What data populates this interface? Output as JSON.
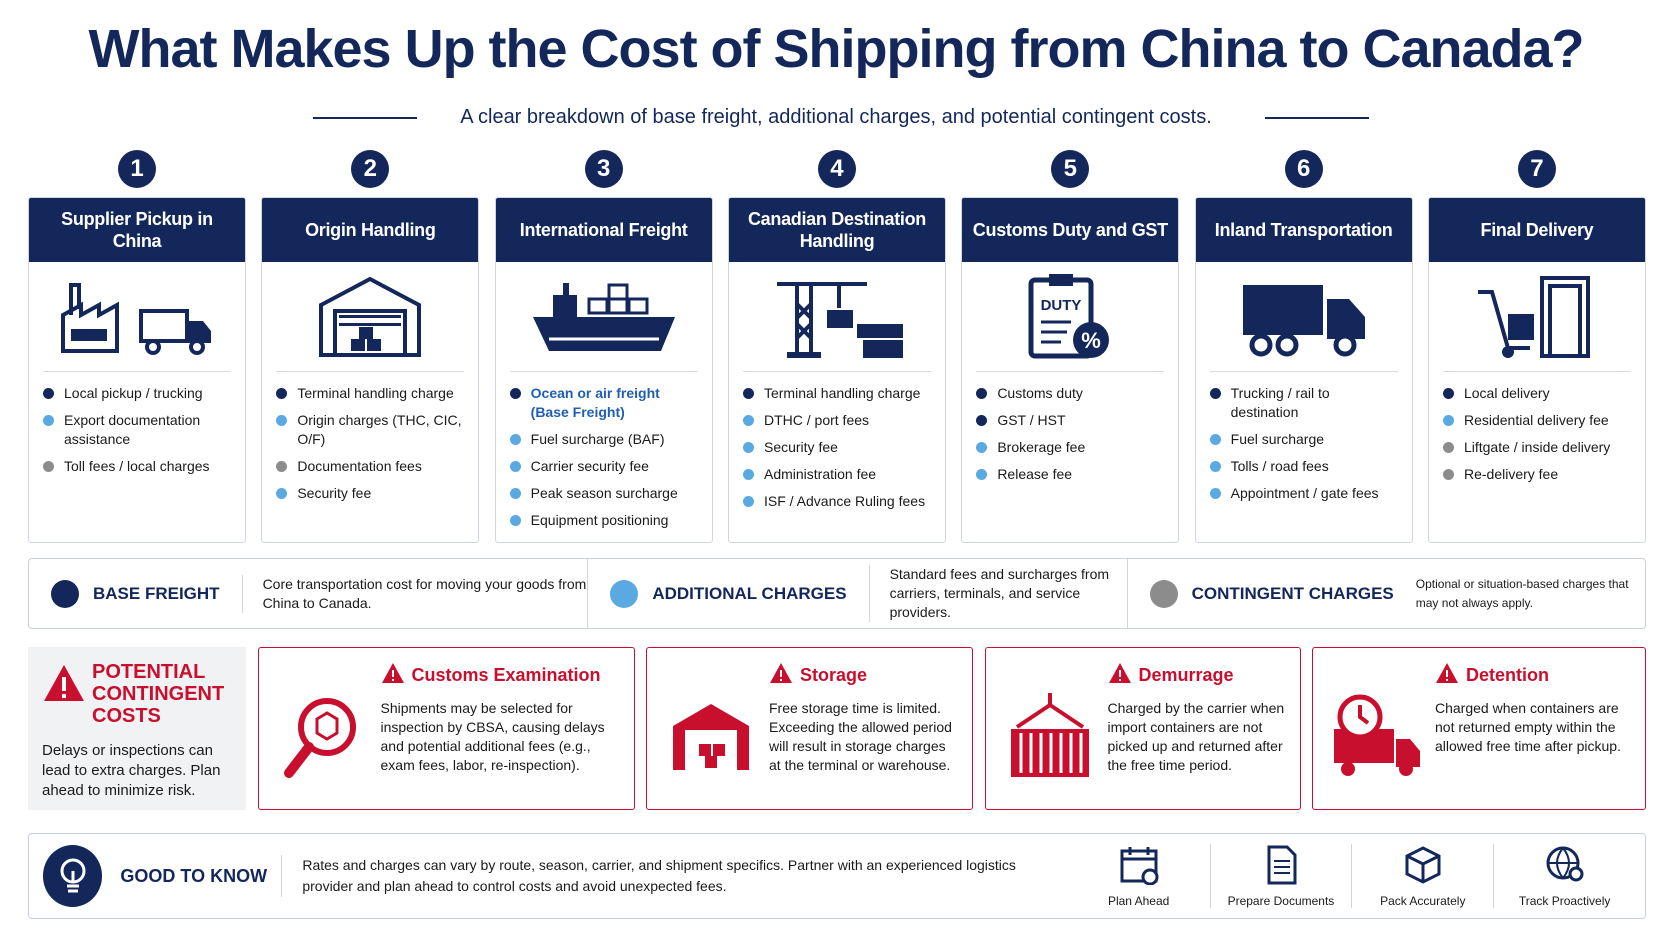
{
  "header": {
    "title": "What Makes Up the Cost of Shipping from China to Canada?",
    "subtitle": "A clear breakdown of base freight, additional charges, and potential contingent costs."
  },
  "steps": [
    {
      "number": "1",
      "title": "Supplier Pickup in China",
      "items": [
        {
          "text": "Local pickup / trucking",
          "color": "#13275a"
        },
        {
          "text": "Export documentation assistance",
          "color": "#5aa9e0"
        },
        {
          "text": "Toll fees / local charges",
          "color": "#8c8c8c"
        }
      ]
    },
    {
      "number": "2",
      "title": "Origin Handling",
      "items": [
        {
          "text": "Terminal handling charge",
          "color": "#13275a"
        },
        {
          "text": "Origin charges (THC, CIC, O/F)",
          "color": "#5aa9e0"
        },
        {
          "text": "Documentation fees",
          "color": "#8c8c8c"
        },
        {
          "text": "Security fee",
          "color": "#5aa9e0"
        }
      ]
    },
    {
      "number": "3",
      "title": "International Freight",
      "items": [
        {
          "text": "Ocean or air freight (Base Freight)",
          "color": "#13275a",
          "emphasis": true
        },
        {
          "text": "Fuel surcharge (BAF)",
          "color": "#5aa9e0"
        },
        {
          "text": "Carrier security fee",
          "color": "#5aa9e0"
        },
        {
          "text": "Peak season surcharge",
          "color": "#5aa9e0"
        },
        {
          "text": "Equipment positioning",
          "color": "#5aa9e0"
        }
      ]
    },
    {
      "number": "4",
      "title": "Canadian Destination Handling",
      "items": [
        {
          "text": "Terminal handling charge",
          "color": "#13275a"
        },
        {
          "text": "DTHC / port fees",
          "color": "#5aa9e0"
        },
        {
          "text": "Security fee",
          "color": "#5aa9e0"
        },
        {
          "text": "Administration fee",
          "color": "#5aa9e0"
        },
        {
          "text": "ISF / Advance Ruling fees",
          "color": "#5aa9e0"
        }
      ]
    },
    {
      "number": "5",
      "title": "Customs Duty and GST",
      "icon_text": "DUTY",
      "icon_badge": "%",
      "items": [
        {
          "text": "Customs duty",
          "color": "#13275a"
        },
        {
          "text": "GST / HST",
          "color": "#13275a"
        },
        {
          "text": "Brokerage fee",
          "color": "#5aa9e0"
        },
        {
          "text": "Release fee",
          "color": "#5aa9e0"
        }
      ]
    },
    {
      "number": "6",
      "title": "Inland Transportation",
      "items": [
        {
          "text": "Trucking / rail to destination",
          "color": "#13275a"
        },
        {
          "text": "Fuel surcharge",
          "color": "#5aa9e0"
        },
        {
          "text": "Tolls / road fees",
          "color": "#5aa9e0"
        },
        {
          "text": "Appointment / gate fees",
          "color": "#5aa9e0"
        }
      ]
    },
    {
      "number": "7",
      "title": "Final Delivery",
      "items": [
        {
          "text": "Local delivery",
          "color": "#13275a"
        },
        {
          "text": "Residential delivery fee",
          "color": "#5aa9e0"
        },
        {
          "text": "Liftgate / inside delivery",
          "color": "#8c8c8c"
        },
        {
          "text": "Re-delivery fee",
          "color": "#8c8c8c"
        }
      ]
    }
  ],
  "legend": [
    {
      "label": "BASE FREIGHT",
      "text": "Core transportation cost for moving your goods from China to Canada.",
      "color": "#13275a"
    },
    {
      "label": "ADDITIONAL CHARGES",
      "text": "Standard fees and surcharges from carriers, terminals, and service providers.",
      "color": "#5aa9e0"
    },
    {
      "label": "CONTINGENT CHARGES",
      "text": "Optional or situation-based charges that may not always apply.",
      "color": "#8c8c8c"
    }
  ],
  "potential": {
    "title": "POTENTIAL CONTINGENT COSTS",
    "text": "Delays or inspections can lead to extra charges. Plan ahead to minimize risk.",
    "cards": [
      {
        "title": "Customs Examination",
        "text": "Shipments may be selected for inspection by CBSA, causing delays and potential additional fees (e.g., exam fees, labor, re-inspection)."
      },
      {
        "title": "Storage",
        "text": "Free storage time is limited. Exceeding the allowed period will result in storage charges at the terminal or warehouse."
      },
      {
        "title": "Demurrage",
        "text": "Charged by the carrier when import containers are not picked up and returned after the free time period."
      },
      {
        "title": "Detention",
        "text": "Charged when containers are not returned empty within the allowed free time after pickup."
      }
    ]
  },
  "good_to_know": {
    "title": "GOOD TO KNOW",
    "text": "Rates and charges can vary by route, season, carrier, and shipment specifics. Partner with an experienced logistics provider and plan ahead to control costs and avoid unexpected fees.",
    "tips": [
      "Plan Ahead",
      "Prepare Documents",
      "Pack Accurately",
      "Track Proactively"
    ]
  }
}
